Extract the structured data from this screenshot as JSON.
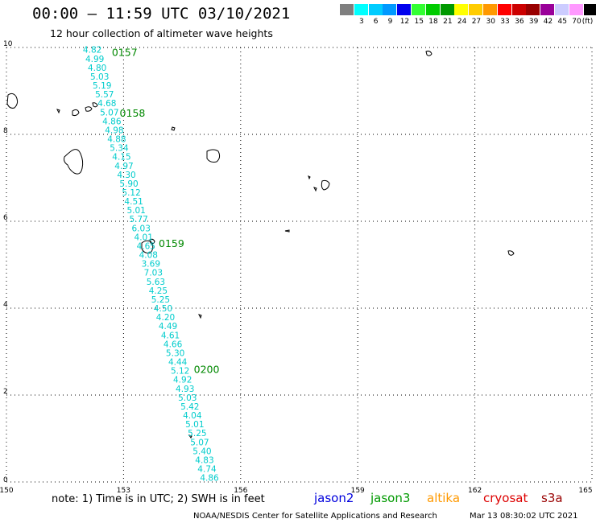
{
  "header": {
    "title": "00:00 — 11:59 UTC 03/10/2021",
    "subtitle": "12 hour collection of altimeter wave heights"
  },
  "colorbar": {
    "bins": [
      {
        "label": "",
        "color": "#7f7f7f"
      },
      {
        "label": "3",
        "color": "#00ffff"
      },
      {
        "label": "6",
        "color": "#00ccff"
      },
      {
        "label": "9",
        "color": "#0099ff"
      },
      {
        "label": "12",
        "color": "#0000ee"
      },
      {
        "label": "15",
        "color": "#33ff33"
      },
      {
        "label": "18",
        "color": "#00cc00"
      },
      {
        "label": "21",
        "color": "#009900"
      },
      {
        "label": "24",
        "color": "#ffff00"
      },
      {
        "label": "27",
        "color": "#ffcc00"
      },
      {
        "label": "30",
        "color": "#ff9900"
      },
      {
        "label": "33",
        "color": "#ff0000"
      },
      {
        "label": "36",
        "color": "#cc0000"
      },
      {
        "label": "39",
        "color": "#990000"
      },
      {
        "label": "42",
        "color": "#990099"
      },
      {
        "label": "45",
        "color": "#ccccff"
      },
      {
        "label": "70",
        "color": "#ff99ff"
      },
      {
        "label": "(ft)",
        "color": "#000000"
      }
    ]
  },
  "map": {
    "lon_range": [
      150,
      165
    ],
    "lat_range": [
      0,
      10
    ],
    "x_ticks": [
      {
        "lon": 150,
        "label": "150"
      },
      {
        "lon": 153,
        "label": "153"
      },
      {
        "lon": 156,
        "label": "156"
      },
      {
        "lon": 159,
        "label": "159"
      },
      {
        "lon": 162,
        "label": "162"
      },
      {
        "lon": 165,
        "label": "165"
      }
    ],
    "y_ticks": [
      {
        "lat": 0,
        "label": "0"
      },
      {
        "lat": 2,
        "label": "2"
      },
      {
        "lat": 4,
        "label": "4"
      },
      {
        "lat": 6,
        "label": "6"
      },
      {
        "lat": 8,
        "label": "8"
      },
      {
        "lat": 10,
        "label": "10"
      }
    ],
    "track_color": "#00cccc",
    "time_color": "#008800",
    "track": {
      "start_lon": 152.2,
      "start_lat": 9.95,
      "end_lon": 155.2,
      "end_lat": 0.1,
      "values": [
        "4.82",
        "4.99",
        "4.80",
        "5.03",
        "5.19",
        "5.57",
        "4.68",
        "5.07",
        "4.86",
        "4.98",
        "4.88",
        "5.34",
        "4.15",
        "4.97",
        "4.30",
        "5.90",
        "5.12",
        "4.51",
        "5.01",
        "5.77",
        "6.03",
        "4.01",
        "4.65",
        "4.08",
        "3.69",
        "7.03",
        "5.63",
        "4.25",
        "5.25",
        "4.50",
        "4.20",
        "4.49",
        "4.61",
        "4.66",
        "5.30",
        "4.44",
        "5.12",
        "4.92",
        "4.93",
        "5.03",
        "5.42",
        "4.04",
        "5.01",
        "5.25",
        "5.07",
        "5.40",
        "4.83",
        "4.74",
        "4.86"
      ]
    },
    "time_labels": [
      {
        "text": "0157",
        "lon": 152.7,
        "lat": 9.9
      },
      {
        "text": "0158",
        "lon": 152.9,
        "lat": 8.5
      },
      {
        "text": "0159",
        "lon": 153.9,
        "lat": 5.5
      },
      {
        "text": "0200",
        "lon": 154.8,
        "lat": 2.6
      }
    ]
  },
  "footer": {
    "note": "note: 1) Time is in UTC; 2) SWH is in feet",
    "satellites": [
      {
        "name": "jason2",
        "color": "#0000dd"
      },
      {
        "name": "jason3",
        "color": "#009900"
      },
      {
        "name": "altika",
        "color": "#ff9900"
      },
      {
        "name": "cryosat",
        "color": "#dd0000"
      },
      {
        "name": "s3a",
        "color": "#990000"
      }
    ],
    "credit": "NOAA/NESDIS Center for Satellite Applications and Research",
    "generated": "Mar 13 08:30:02 UTC 2021"
  }
}
